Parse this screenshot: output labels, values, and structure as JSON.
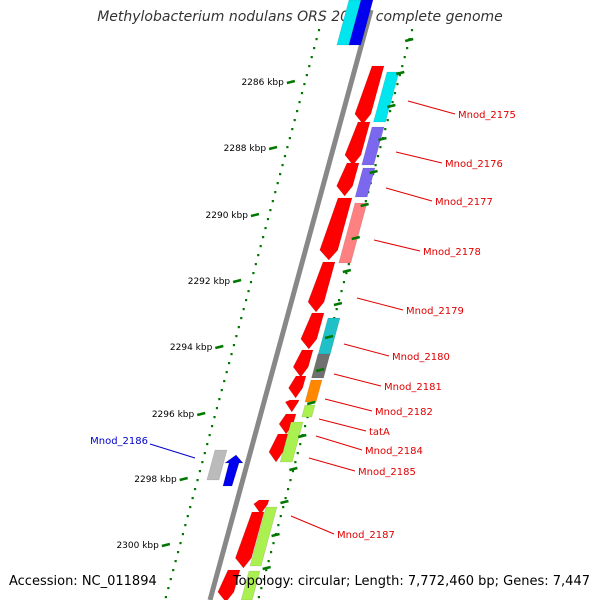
{
  "title": "Methylobacterium nodulans ORS 2060, complete genome",
  "footer": {
    "accession": "Accession: NC_011894",
    "summary": "Topology: circular; Length: 7,772,460 bp; Genes: 7,447"
  },
  "scale_ticks": [
    {
      "label": "2286 kbp"
    },
    {
      "label": "2288 kbp"
    },
    {
      "label": "2290 kbp"
    },
    {
      "label": "2292 kbp"
    },
    {
      "label": "2294 kbp"
    },
    {
      "label": "2296 kbp"
    },
    {
      "label": "2298 kbp"
    },
    {
      "label": "2300 kbp"
    }
  ],
  "gene_labels": [
    {
      "text": "Mnod_2175",
      "color": "#e00000"
    },
    {
      "text": "Mnod_2176",
      "color": "#e00000"
    },
    {
      "text": "Mnod_2177",
      "color": "#e00000"
    },
    {
      "text": "Mnod_2178",
      "color": "#e00000"
    },
    {
      "text": "Mnod_2179",
      "color": "#e00000"
    },
    {
      "text": "Mnod_2180",
      "color": "#e00000"
    },
    {
      "text": "Mnod_2181",
      "color": "#e00000"
    },
    {
      "text": "Mnod_2182",
      "color": "#e00000"
    },
    {
      "text": "tatA",
      "color": "#e00000"
    },
    {
      "text": "Mnod_2184",
      "color": "#e00000"
    },
    {
      "text": "Mnod_2185",
      "color": "#e00000"
    },
    {
      "text": "Mnod_2187",
      "color": "#e00000"
    },
    {
      "text": "Mnod_2186",
      "color": "#0000cc"
    }
  ],
  "colors": {
    "forward_gene": "#ff0000",
    "reverse_gene": "#0000ee",
    "backbone": "#888888",
    "tick": "#007700",
    "cog_cyan": "#00e5ee",
    "cog_slate": "#7b68ee",
    "cog_salmon": "#ff8080",
    "cog_teal": "#20c0c8",
    "cog_gray": "#707070",
    "cog_orange": "#ff8800",
    "cog_green": "#aaf050",
    "cog_lightgray": "#bbbbbb"
  }
}
